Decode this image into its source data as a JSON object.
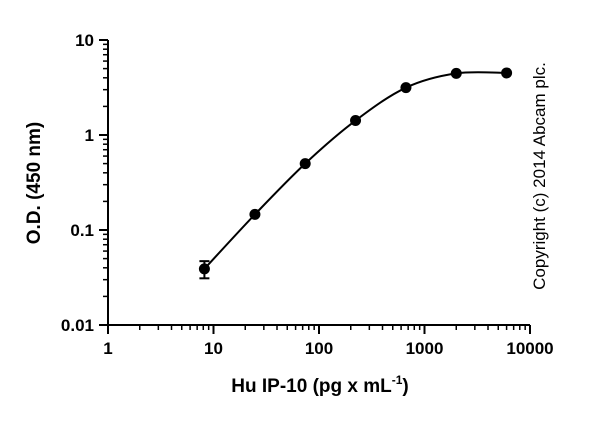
{
  "chart_data": {
    "type": "scatter",
    "title": "",
    "xlabel": {
      "main": "Hu IP-10 (pg x mL",
      "superscript": "-1",
      "close": ")"
    },
    "ylabel": "O.D. (450 nm)",
    "x_scale": "log",
    "y_scale": "log",
    "xlim": [
      1,
      10000
    ],
    "ylim": [
      0.01,
      10
    ],
    "x_ticks": [
      1,
      10,
      100,
      1000,
      10000
    ],
    "x_tick_labels": [
      "1",
      "10",
      "100",
      "1000",
      "10000"
    ],
    "y_ticks": [
      0.01,
      0.1,
      1,
      10
    ],
    "y_tick_labels": [
      "0.01",
      "0.1",
      "1",
      "10"
    ],
    "grid": false,
    "legend": "none",
    "series": [
      {
        "x": [
          8.2,
          24.7,
          74,
          222,
          667,
          2000,
          6000
        ],
        "y": [
          0.039,
          0.146,
          0.5,
          1.42,
          3.15,
          4.45,
          4.5
        ],
        "error": [
          0.008,
          0.005,
          0.01,
          0.02,
          0.05,
          0.05,
          0.05
        ],
        "color": "#000000",
        "marker": "circle",
        "line": "curve"
      }
    ],
    "annotation": "Copyright (c) 2014 Abcam plc."
  }
}
